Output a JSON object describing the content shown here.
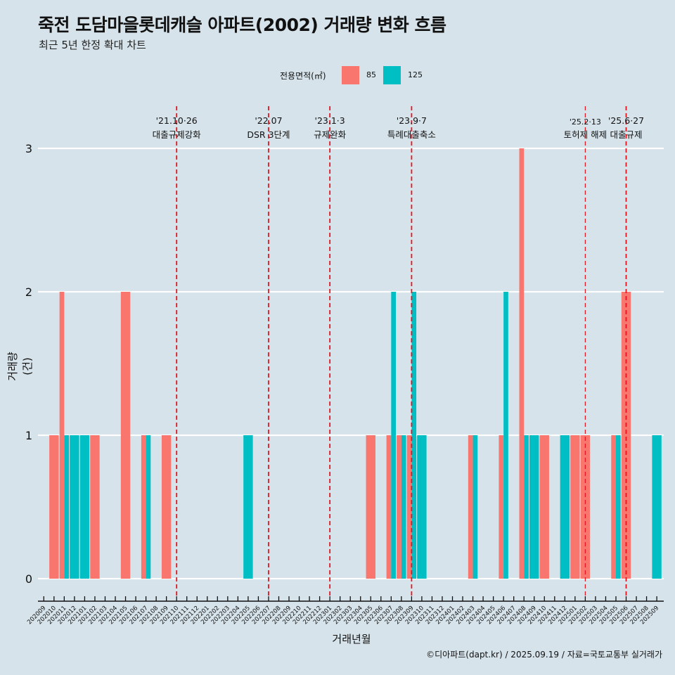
{
  "title": "죽전 도담마을롯데캐슬 아파트(2002) 거래량 변화 흐름",
  "subtitle": "최근 5년 한정 확대 차트",
  "caption": "©디아파트(dapt.kr) / 2025.09.19 / 자료=국토교통부 실거래가",
  "colors": {
    "background": "#d6e3ea",
    "s85": "#f8766d",
    "s125": "#00bfc4",
    "event_line": "#e8141e",
    "grid": "#ffffff"
  },
  "chart_data": {
    "type": "bar",
    "title": "죽전 도담마을롯데캐슬 아파트(2002) 거래량 변화 흐름",
    "subtitle": "최근 5년 한정 확대 차트",
    "xlabel": "거래년월",
    "ylabel": "거래량(건)",
    "ylim": [
      0,
      3
    ],
    "yticks": [
      "0",
      "1",
      "2",
      "3"
    ],
    "grid": "horizontal",
    "legend": {
      "title": "전용면적(㎡)",
      "position": "top",
      "entries": [
        "85",
        "125"
      ]
    },
    "categories": [
      "202009",
      "202010",
      "202011",
      "202012",
      "202101",
      "202102",
      "202103",
      "202104",
      "202105",
      "202106",
      "202107",
      "202108",
      "202109",
      "202110",
      "202111",
      "202112",
      "202201",
      "202202",
      "202203",
      "202204",
      "202205",
      "202206",
      "202207",
      "202208",
      "202209",
      "202210",
      "202211",
      "202212",
      "202301",
      "202302",
      "202303",
      "202304",
      "202305",
      "202306",
      "202307",
      "202308",
      "202309",
      "202310",
      "202311",
      "202312",
      "202401",
      "202402",
      "202403",
      "202404",
      "202405",
      "202406",
      "202407",
      "202408",
      "202409",
      "202410",
      "202411",
      "202412",
      "202501",
      "202502",
      "202503",
      "202504",
      "202505",
      "202506",
      "202507",
      "202508",
      "202509"
    ],
    "series": [
      {
        "name": "85",
        "values": [
          0,
          1,
          2,
          0,
          0,
          1,
          0,
          0,
          2,
          0,
          1,
          0,
          1,
          0,
          0,
          0,
          0,
          0,
          0,
          0,
          0,
          0,
          0,
          0,
          0,
          0,
          0,
          0,
          0,
          0,
          0,
          0,
          1,
          0,
          1,
          1,
          1,
          0,
          0,
          0,
          0,
          0,
          1,
          0,
          0,
          1,
          0,
          3,
          0,
          1,
          0,
          0,
          1,
          1,
          0,
          0,
          1,
          2,
          0,
          0,
          0
        ]
      },
      {
        "name": "125",
        "values": [
          0,
          0,
          1,
          1,
          1,
          0,
          0,
          0,
          0,
          0,
          1,
          0,
          0,
          0,
          0,
          0,
          0,
          0,
          0,
          0,
          1,
          0,
          0,
          0,
          0,
          0,
          0,
          0,
          0,
          0,
          0,
          0,
          0,
          0,
          2,
          1,
          2,
          1,
          0,
          0,
          0,
          0,
          1,
          0,
          0,
          2,
          0,
          1,
          1,
          0,
          0,
          1,
          0,
          0,
          0,
          0,
          1,
          0,
          0,
          0,
          1
        ]
      }
    ],
    "annotations": [
      {
        "month": "202110",
        "date": "'21.10·26",
        "label": "대출규제강화",
        "style": "major"
      },
      {
        "month": "202207",
        "date": "'22.07",
        "label": "DSR 3단계",
        "style": "major"
      },
      {
        "month": "202301",
        "date": "'23.1·3",
        "label": "규제완화",
        "style": "major"
      },
      {
        "month": "202309",
        "date": "'23.9·7",
        "label": "특례대출축소",
        "style": "major"
      },
      {
        "month": "202502",
        "date": "'25.2·13",
        "label": "토허제 해제",
        "style": "minor"
      },
      {
        "month": "202506",
        "date": "'25.6·27",
        "label": "대출규제",
        "style": "major"
      }
    ]
  }
}
